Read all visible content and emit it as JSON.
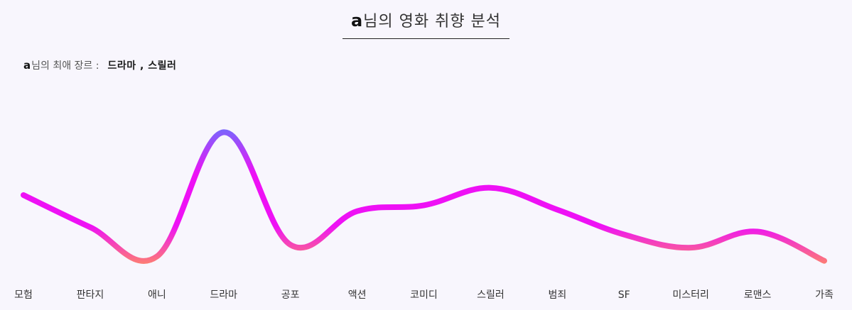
{
  "header": {
    "user_name": "a",
    "title_suffix": "님의 영화 취향 분석"
  },
  "favorite": {
    "user_name": "a",
    "label": "님의 최애 장르 :",
    "genres_text": "드라마 ,  스릴러"
  },
  "chart_data": {
    "type": "line",
    "categories": [
      "모험",
      "판타지",
      "애니",
      "드라마",
      "공포",
      "액션",
      "코미디",
      "스릴러",
      "범죄",
      "SF",
      "미스터리",
      "로맨스",
      "가족"
    ],
    "values": [
      5.0,
      2.8,
      0.8,
      9.3,
      1.6,
      3.9,
      4.3,
      5.5,
      4.0,
      2.3,
      1.4,
      2.5,
      0.5
    ],
    "ylim": [
      0,
      10
    ],
    "grid": false,
    "legend": "none",
    "gradient_colors": {
      "top": "#5b7cff",
      "mid": "#ee11f5",
      "bottom": "#ff8a65"
    }
  }
}
